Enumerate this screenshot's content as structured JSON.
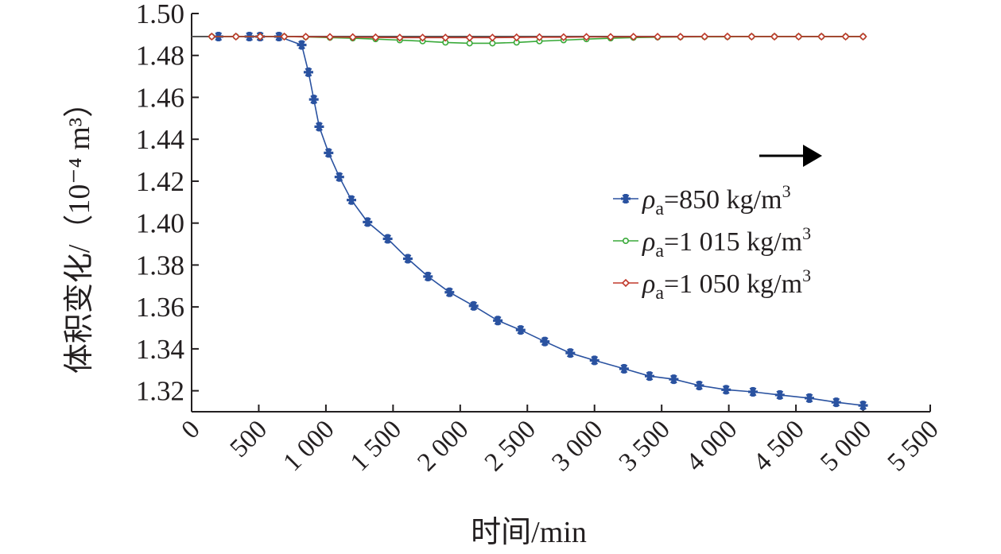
{
  "chart_data": {
    "type": "line",
    "title": "",
    "xlabel": "时间/min",
    "ylabel": "体积变化/（10⁻⁴ m³）",
    "xlim": [
      0,
      5500
    ],
    "ylim": [
      1.31,
      1.5
    ],
    "x_ticks": [
      0,
      500,
      1000,
      1500,
      2000,
      2500,
      3000,
      3500,
      4000,
      4500,
      5000,
      5500
    ],
    "x_tick_labels": [
      "0",
      "500",
      "1 000",
      "1 500",
      "2 000",
      "2 500",
      "3 000",
      "3 500",
      "4 000",
      "4 500",
      "5 000",
      "5 500"
    ],
    "y_ticks": [
      1.32,
      1.34,
      1.36,
      1.38,
      1.4,
      1.42,
      1.44,
      1.46,
      1.48,
      1.5
    ],
    "y_tick_labels": [
      "1.32",
      "1.34",
      "1.36",
      "1.38",
      "1.40",
      "1.42",
      "1.44",
      "1.46",
      "1.48",
      "1.50"
    ],
    "grid": false,
    "legend_position": "right-middle",
    "arrow_annotation": "right-pointing arrow above legend",
    "series": [
      {
        "name": "ρa=850 kg/m³",
        "name_parts": {
          "symbol": "ρ",
          "subscript": "a",
          "text": "=850 kg/m",
          "superscript": "3"
        },
        "color": "#2a52a0",
        "marker": "asterisk",
        "x": [
          200,
          430,
          510,
          650,
          820,
          870,
          910,
          950,
          1020,
          1100,
          1190,
          1310,
          1460,
          1610,
          1760,
          1920,
          2100,
          2280,
          2450,
          2630,
          2820,
          3000,
          3220,
          3410,
          3590,
          3780,
          3980,
          4180,
          4380,
          4600,
          4800,
          5000
        ],
        "y": [
          1.489,
          1.489,
          1.489,
          1.489,
          1.485,
          1.472,
          1.459,
          1.446,
          1.4335,
          1.422,
          1.411,
          1.4005,
          1.3925,
          1.383,
          1.3745,
          1.367,
          1.3605,
          1.3535,
          1.349,
          1.3435,
          1.338,
          1.3345,
          1.3305,
          1.327,
          1.3255,
          1.3225,
          1.3205,
          1.3195,
          1.318,
          1.3165,
          1.3145,
          1.313
        ]
      },
      {
        "name": "ρa=1 015 kg/m³",
        "name_parts": {
          "symbol": "ρ",
          "subscript": "a",
          "text": "=1 015 kg/m",
          "superscript": "3"
        },
        "color": "#3aaa3a",
        "marker": "circle",
        "x": [
          150,
          330,
          510,
          690,
          850,
          1030,
          1200,
          1370,
          1550,
          1720,
          1890,
          2070,
          2240,
          2420,
          2590,
          2770,
          2940,
          3120,
          3290,
          3470,
          3640,
          3820,
          3990,
          4170,
          4340,
          4520,
          4690,
          4870,
          5000
        ],
        "y": [
          1.489,
          1.489,
          1.489,
          1.489,
          1.4888,
          1.4885,
          1.4882,
          1.4878,
          1.4873,
          1.4868,
          1.4862,
          1.4858,
          1.4858,
          1.4862,
          1.4868,
          1.4873,
          1.4878,
          1.4882,
          1.4885,
          1.4887,
          1.4888,
          1.4889,
          1.4889,
          1.489,
          1.489,
          1.489,
          1.489,
          1.489,
          1.489
        ]
      },
      {
        "name": "ρa=1 050 kg/m³",
        "name_parts": {
          "symbol": "ρ",
          "subscript": "a",
          "text": "=1 050 kg/m",
          "superscript": "3"
        },
        "color": "#c0392b",
        "marker": "diamond",
        "x": [
          150,
          330,
          510,
          690,
          850,
          1030,
          1200,
          1370,
          1550,
          1720,
          1890,
          2070,
          2240,
          2420,
          2590,
          2770,
          2940,
          3120,
          3290,
          3470,
          3640,
          3820,
          3990,
          4170,
          4340,
          4520,
          4690,
          4870,
          5000
        ],
        "y": [
          1.489,
          1.489,
          1.489,
          1.489,
          1.4889,
          1.4888,
          1.4887,
          1.4886,
          1.4885,
          1.4885,
          1.4885,
          1.4885,
          1.4885,
          1.4886,
          1.4887,
          1.4887,
          1.4888,
          1.4888,
          1.4889,
          1.4889,
          1.4889,
          1.489,
          1.489,
          1.489,
          1.489,
          1.489,
          1.489,
          1.489,
          1.489
        ]
      }
    ],
    "reference_line": {
      "y": 1.489,
      "color": "#555555"
    }
  }
}
